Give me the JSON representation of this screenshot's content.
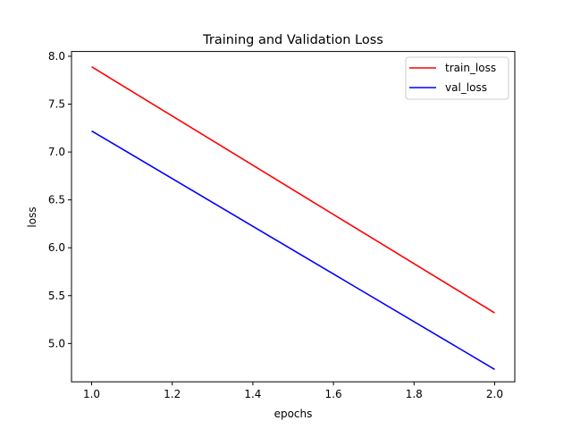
{
  "chart_data": {
    "type": "line",
    "title": "Training and Validation Loss",
    "xlabel": "epochs",
    "ylabel": "loss",
    "xlim": [
      0.95,
      2.05
    ],
    "ylim": [
      4.6,
      8.05
    ],
    "xticks": [
      1.0,
      1.2,
      1.4,
      1.6,
      1.8,
      2.0
    ],
    "xtick_labels": [
      "1.0",
      "1.2",
      "1.4",
      "1.6",
      "1.8",
      "2.0"
    ],
    "yticks": [
      5.0,
      5.5,
      6.0,
      6.5,
      7.0,
      7.5,
      8.0
    ],
    "ytick_labels": [
      "5.0",
      "5.5",
      "6.0",
      "6.5",
      "7.0",
      "7.5",
      "8.0"
    ],
    "grid": false,
    "legend_position": "top-right",
    "series": [
      {
        "name": "train_loss",
        "color": "#ff0000",
        "x": [
          1.0,
          2.0
        ],
        "y": [
          7.89,
          5.32
        ]
      },
      {
        "name": "val_loss",
        "color": "#0000ff",
        "x": [
          1.0,
          2.0
        ],
        "y": [
          7.22,
          4.73
        ]
      }
    ]
  }
}
